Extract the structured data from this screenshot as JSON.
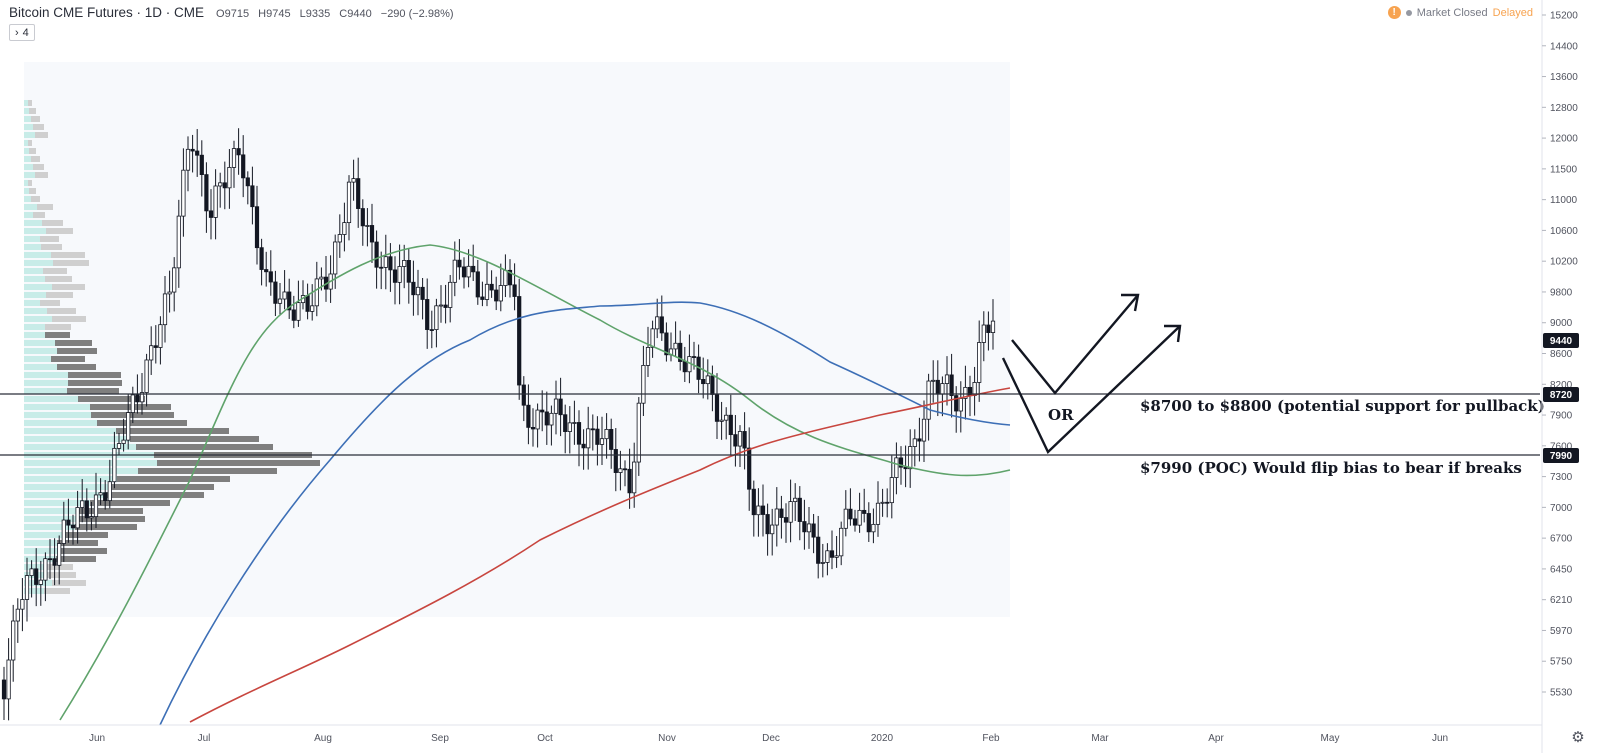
{
  "header": {
    "symbol": "Bitcoin CME Futures · 1D · CME",
    "open": "O9715",
    "high": "H9745",
    "low": "L9335",
    "close": "C9440",
    "change": "−290 (−2.98%)",
    "indicator_toggle": "4"
  },
  "status": {
    "warning": "!",
    "market": "Market Closed",
    "delayed": "Delayed"
  },
  "price_axis": {
    "ticks": [
      "15200",
      "14400",
      "13600",
      "12800",
      "12000",
      "11500",
      "11000",
      "10600",
      "10200",
      "9800",
      "9000",
      "8600",
      "8200",
      "7900",
      "7600",
      "7300",
      "7000",
      "6700",
      "6450",
      "6210",
      "5970",
      "5750",
      "5530"
    ],
    "last_price": "9440",
    "level_upper": "8720",
    "level_poc": "7990"
  },
  "time_axis": {
    "labels": [
      "Jun",
      "Jul",
      "Aug",
      "Sep",
      "Oct",
      "Nov",
      "Dec",
      "2020",
      "Feb",
      "Mar",
      "Apr",
      "May",
      "Jun"
    ]
  },
  "annotations": {
    "or_label": "OR",
    "support_text": "$8700 to $8800 (potential support for pullback)",
    "poc_text": "$7990 (POC) Would flip bias to bear if breaks"
  },
  "colors": {
    "ma_green": "#5fa36b",
    "ma_blue": "#3d6fb6",
    "ma_red": "#c8463f",
    "tag_last": "#131722",
    "tag_level": "#131722",
    "status_warning": "#f7a350"
  },
  "chart_data": {
    "type": "candlestick",
    "symbol": "Bitcoin CME Futures",
    "interval": "1D",
    "series": [
      {
        "x": "Jan 31",
        "values": [
          9715,
          9745,
          9335,
          9440
        ]
      }
    ],
    "moving_averages": 3,
    "horizontal_levels": [
      8720,
      7990
    ],
    "ylim": [
      5400,
      15300
    ]
  }
}
